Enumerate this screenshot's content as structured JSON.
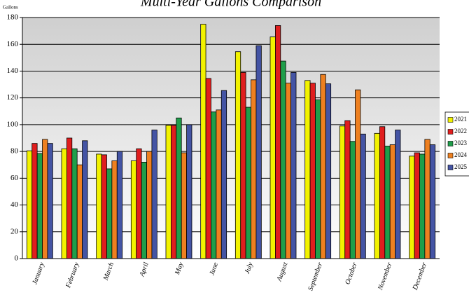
{
  "chart_data": {
    "type": "bar",
    "title": "Multi-Year Gallons Comparison",
    "y_label": "Gallons",
    "categories": [
      "January",
      "February",
      "March",
      "April",
      "May",
      "June",
      "July",
      "August",
      "September",
      "October",
      "November",
      "December"
    ],
    "series": [
      {
        "name": "2021",
        "color": "#f2f200",
        "values": [
          80.5,
          82,
          78,
          73,
          99.5,
          175,
          154.5,
          165.5,
          133,
          99,
          93.5,
          76.5
        ]
      },
      {
        "name": "2022",
        "color": "#e01e1e",
        "values": [
          86,
          90,
          77.5,
          82,
          99.5,
          134.5,
          139,
          174,
          131,
          103,
          98.5,
          79
        ]
      },
      {
        "name": "2023",
        "color": "#1f9e4a",
        "values": [
          78.5,
          82,
          67,
          72,
          105,
          109.5,
          113,
          147.5,
          118.5,
          87.5,
          84,
          78
        ]
      },
      {
        "name": "2024",
        "color": "#ee8020",
        "values": [
          89,
          70,
          73,
          80,
          79,
          111,
          133.5,
          131,
          137.5,
          126,
          85,
          89
        ]
      },
      {
        "name": "2025",
        "color": "#4454a4",
        "values": [
          86,
          88,
          80,
          96,
          100,
          125.5,
          159,
          139,
          130.5,
          93,
          96,
          85
        ]
      }
    ],
    "ylim": [
      0,
      180
    ],
    "yticks": [
      0,
      20,
      40,
      60,
      80,
      100,
      120,
      140,
      160,
      180
    ],
    "grid": true
  }
}
